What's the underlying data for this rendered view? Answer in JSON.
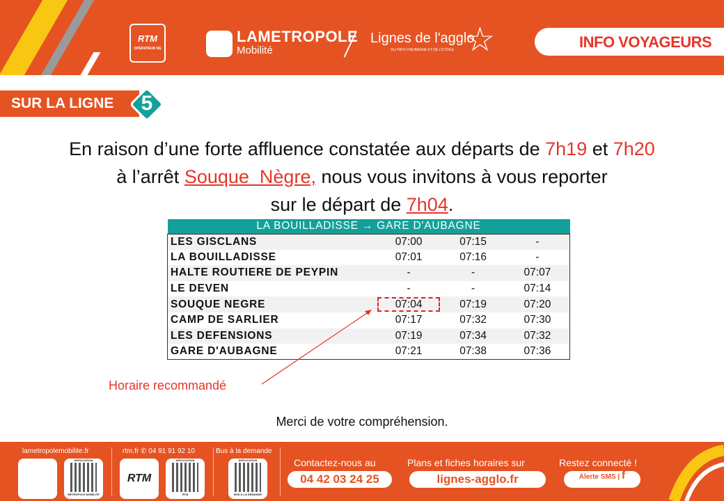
{
  "header": {
    "rtm_logo": "RTM",
    "rtm_sub": "OPÉRATEUR DE",
    "metropole_logo_1": "LAMETROPOLE",
    "metropole_logo_2": "Mobilité",
    "agglo_logo": "Lignes de l'agglo",
    "agglo_sub": "DU PAYS D'AUBAGNE ET DE L'ÉTOILE",
    "info_label": "INFO VOYAGEURS"
  },
  "line": {
    "label": "SUR LA LIGNE",
    "number": "5",
    "color": "#14a09a"
  },
  "message": {
    "p1": "En raison d’une forte affluence constatée aux départs de ",
    "t1": "7h19",
    "p2": " et ",
    "t2": "7h20",
    "p3": "à l’arrêt ",
    "stop": "Souque  Nègre,",
    "p4": " nous vous invitons à vous reporter",
    "p5": "sur le départ de ",
    "t3": "7h04",
    "p6": "."
  },
  "timetable": {
    "title": "LA BOUILLADISSE → GARE D'AUBAGNE",
    "rows": [
      {
        "stop": "LES GISCLANS",
        "times": [
          "07:00",
          "07:15",
          "-"
        ]
      },
      {
        "stop": "LA BOUILLADISSE",
        "times": [
          "07:01",
          "07:16",
          "-"
        ]
      },
      {
        "stop": "HALTE ROUTIERE DE PEYPIN",
        "times": [
          "-",
          "-",
          "07:07"
        ]
      },
      {
        "stop": "LE DEVEN",
        "times": [
          "-",
          "-",
          "07:14"
        ]
      },
      {
        "stop": "SOUQUE NEGRE",
        "times": [
          "07:04",
          "07:19",
          "07:20"
        ]
      },
      {
        "stop": "CAMP DE SARLIER",
        "times": [
          "07:17",
          "07:32",
          "07:30"
        ]
      },
      {
        "stop": "LES DEFENSIONS",
        "times": [
          "07:19",
          "07:34",
          "07:32"
        ]
      },
      {
        "stop": "GARE D'AUBAGNE",
        "times": [
          "07:21",
          "07:38",
          "07:36"
        ]
      }
    ]
  },
  "recommended_label": "Horaire recommandé",
  "thanks": "Merci de votre compréhension.",
  "footer": {
    "site1": "lametropolemobilite.fr",
    "site2": "rtm.fr",
    "phone_rtm": "04 91 91 92 10",
    "tad": "Bus à la demande",
    "qr1": "METROPOLE MOBILITE",
    "qr2": "RTM",
    "qr3": "BUS À LA DEMANDE",
    "app": "APPLICATION",
    "contact_label": "Contactez-nous au",
    "contact_phone": "04 42 03 24 25",
    "plans_label": "Plans et fiches horaires sur",
    "plans_url": "lignes-agglo.fr",
    "social_label": "Restez connecté !",
    "sms": "Alerte SMS",
    "fb": "f"
  },
  "colors": {
    "orange": "#e55322",
    "red": "#e4362a",
    "teal": "#14a09a",
    "yellow": "#f9c613"
  }
}
